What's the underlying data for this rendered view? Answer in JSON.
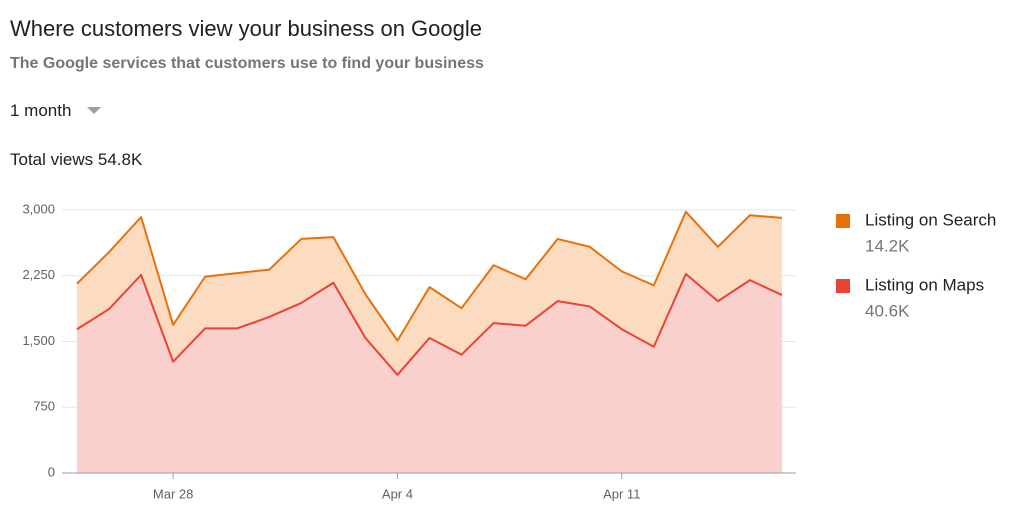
{
  "chart_data": {
    "type": "stacked-area",
    "title": "Where customers view your business on Google",
    "subtitle": "The Google services that customers use to find your business",
    "period": "1 month",
    "total_views": "Total views 54.8K",
    "categories": [
      null,
      null,
      null,
      "Mar 28",
      null,
      null,
      null,
      null,
      null,
      null,
      "Apr 4",
      null,
      null,
      null,
      null,
      null,
      null,
      "Apr 11",
      null,
      null,
      null,
      null,
      null
    ],
    "series": [
      {
        "name": "Listing on Search",
        "total": "14.2K",
        "color": "#e8710a",
        "fill": "#fbdcc0",
        "values": [
          520,
          650,
          660,
          420,
          590,
          630,
          540,
          730,
          520,
          500,
          390,
          580,
          530,
          660,
          530,
          710,
          680,
          660,
          700,
          710,
          620,
          740,
          880
        ]
      },
      {
        "name": "Listing on Maps",
        "total": "40.6K",
        "color": "#ea4335",
        "fill": "#f9d0cc",
        "values": [
          1640,
          1870,
          2260,
          1270,
          1650,
          1650,
          1780,
          1940,
          2170,
          1540,
          1120,
          1540,
          1350,
          1710,
          1680,
          1960,
          1900,
          1640,
          1440,
          2270,
          1960,
          2200,
          2030
        ]
      }
    ],
    "ylim": [
      0,
      3000
    ],
    "yticks": [
      0,
      750,
      {
        "value": 1500,
        "label": "1,500"
      },
      {
        "value": 2250,
        "label": "2,250"
      },
      {
        "value": 3000,
        "label": "3,000"
      }
    ],
    "grid": true
  }
}
